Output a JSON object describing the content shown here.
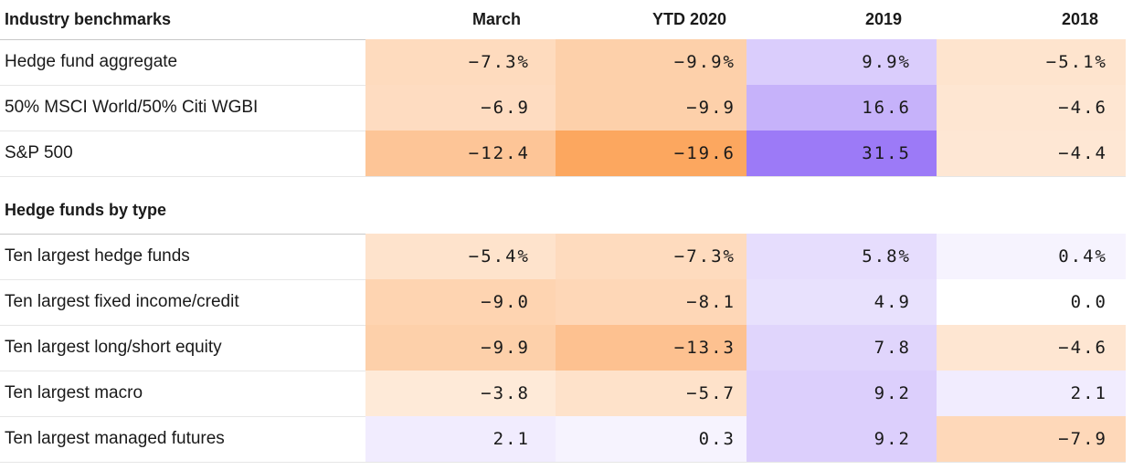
{
  "chart_data": {
    "type": "table",
    "columns": [
      "March",
      "YTD 2020",
      "2019",
      "2018"
    ],
    "sections": [
      {
        "title": "Industry benchmarks",
        "rows": [
          {
            "label": "Hedge fund aggregate",
            "values": [
              -7.3,
              -9.9,
              9.9,
              -5.1
            ],
            "display": [
              "−7.3%",
              "−9.9%",
              "9.9%",
              "−5.1%"
            ]
          },
          {
            "label": "50% MSCI World/50% Citi WGBI",
            "values": [
              -6.9,
              -9.9,
              16.6,
              -4.6
            ],
            "display": [
              "−6.9",
              "−9.9",
              "16.6",
              "−4.6"
            ]
          },
          {
            "label": "S&P 500",
            "values": [
              -12.4,
              -19.6,
              31.5,
              -4.4
            ],
            "display": [
              "−12.4",
              "−19.6",
              "31.5",
              "−4.4"
            ]
          }
        ]
      },
      {
        "title": "Hedge funds by type",
        "rows": [
          {
            "label": "Ten largest hedge funds",
            "values": [
              -5.4,
              -7.3,
              5.8,
              0.4
            ],
            "display": [
              "−5.4%",
              "−7.3%",
              "5.8%",
              "0.4%"
            ]
          },
          {
            "label": "Ten largest fixed income/credit",
            "values": [
              -9.0,
              -8.1,
              4.9,
              0.0
            ],
            "display": [
              "−9.0",
              "−8.1",
              "4.9",
              "0.0"
            ]
          },
          {
            "label": "Ten largest long/short equity",
            "values": [
              -9.9,
              -13.3,
              7.8,
              -4.6
            ],
            "display": [
              "−9.9",
              "−13.3",
              "7.8",
              "−4.6"
            ]
          },
          {
            "label": "Ten largest macro",
            "values": [
              -3.8,
              -5.7,
              9.2,
              2.1
            ],
            "display": [
              "−3.8",
              "−5.7",
              "9.2",
              "2.1"
            ]
          },
          {
            "label": "Ten largest managed futures",
            "values": [
              2.1,
              0.3,
              9.2,
              -7.9
            ],
            "display": [
              "2.1",
              "0.3",
              "9.2",
              "−7.9"
            ]
          }
        ]
      }
    ],
    "colors": {
      "negative": "#fca65e",
      "positive": "#9c7af7",
      "neutral_bg": "#ffffff"
    }
  }
}
